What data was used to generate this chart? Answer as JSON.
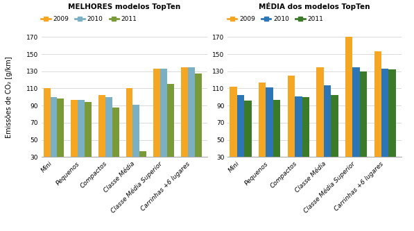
{
  "melhores": {
    "categories": [
      "Mini",
      "Pequenos",
      "Compactos",
      "Classe Média",
      "Classe Média Superior",
      "Carrinhas +6 lugares"
    ],
    "2009": [
      110,
      97,
      102,
      110,
      133,
      135
    ],
    "2010": [
      100,
      97,
      100,
      91,
      133,
      135
    ],
    "2011": [
      98,
      94,
      88,
      37,
      115,
      127
    ]
  },
  "media": {
    "categories": [
      "Mini",
      "Pequenos",
      "Compactos",
      "Classe Média",
      "Classe Média Superior",
      "Carrinhas +6 lugares"
    ],
    "2009": [
      112,
      117,
      125,
      135,
      170,
      153
    ],
    "2010": [
      102,
      111,
      101,
      114,
      135,
      133
    ],
    "2011": [
      96,
      97,
      100,
      102,
      130,
      132
    ]
  },
  "melhores_colors": [
    "#F5A623",
    "#7BAFC4",
    "#7A9A3A"
  ],
  "media_colors": [
    "#F5A623",
    "#2E75B6",
    "#3A7A28"
  ],
  "title_left": "MELHORES modelos TopTen",
  "title_right": "MÉDIA dos modelos TopTen",
  "ylabel": "Emissões de CO₂ [g/km]",
  "ylim": [
    30,
    170
  ],
  "yticks": [
    30,
    50,
    70,
    90,
    110,
    130,
    150,
    170
  ],
  "legend_labels": [
    "2009",
    "2010",
    "2011"
  ],
  "background_color": "#FFFFFF"
}
